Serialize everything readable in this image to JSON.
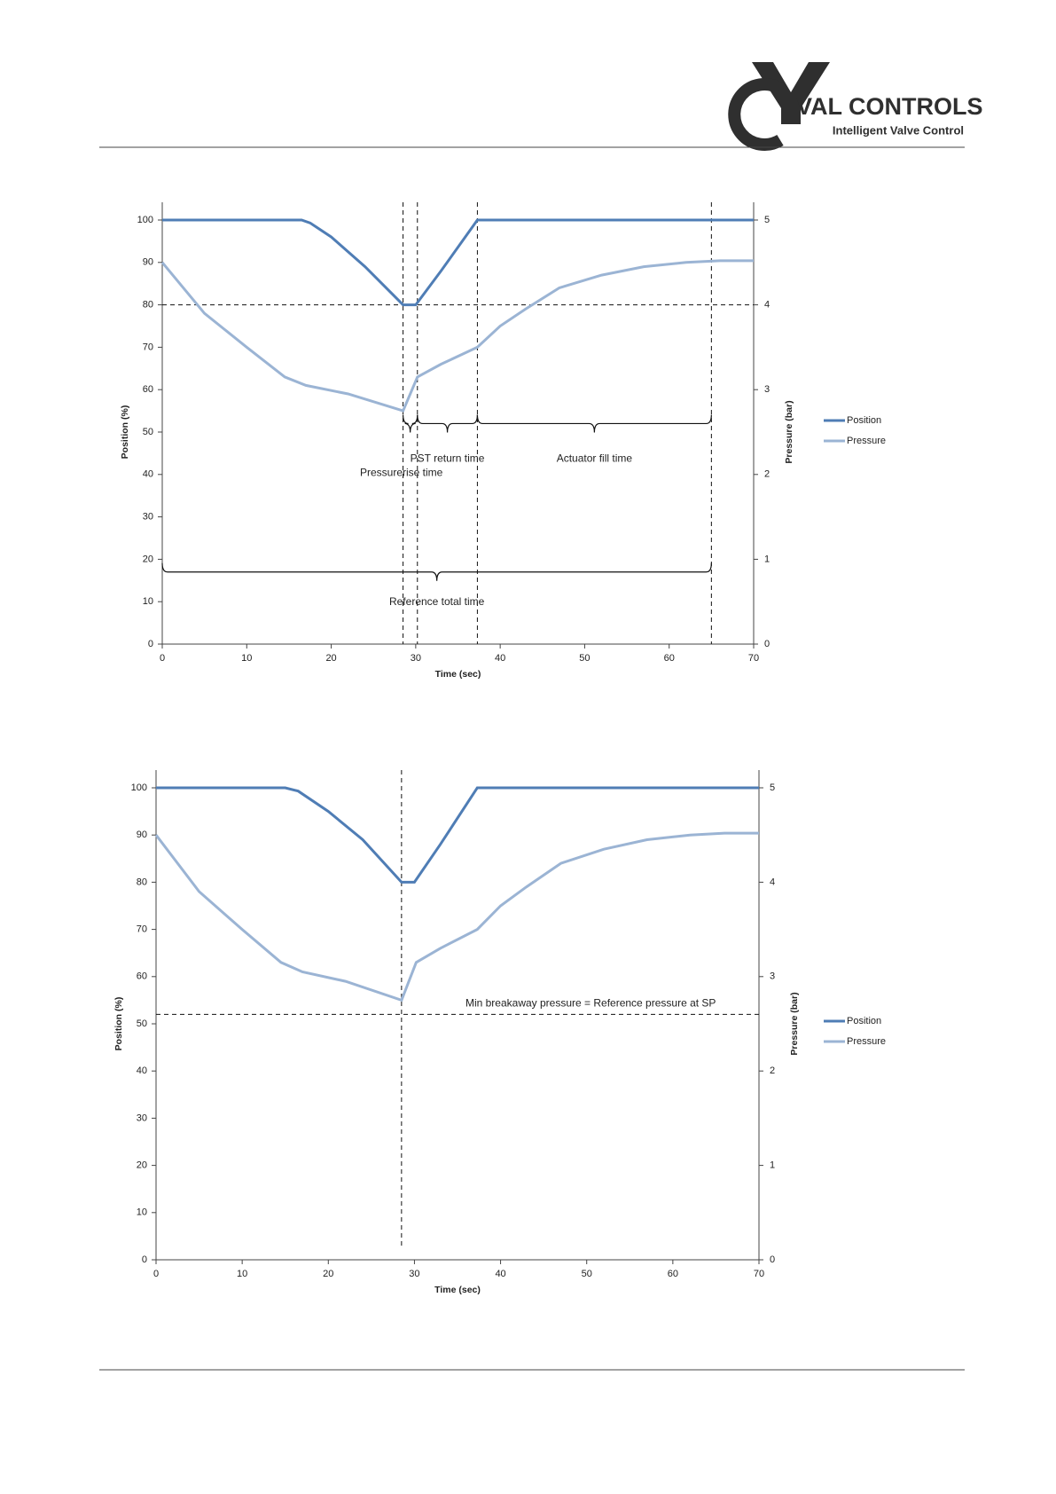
{
  "header": {
    "company": "VAL CONTROLS",
    "tagline": "Intelligent Valve Control"
  },
  "chart_data": [
    {
      "type": "line",
      "x_label": "Time (sec)",
      "y_label": "Position (%)",
      "y2_label": "Pressure (bar)",
      "xlim": [
        0,
        70
      ],
      "xticks": [
        0,
        10,
        20,
        30,
        40,
        50,
        60,
        70
      ],
      "ylim": [
        0,
        100
      ],
      "yticks": [
        0,
        10,
        20,
        30,
        40,
        50,
        60,
        70,
        80,
        90,
        100
      ],
      "y2lim": [
        0,
        5
      ],
      "y2ticks": [
        0,
        1,
        2,
        3,
        4,
        5
      ],
      "legend": "right",
      "series": [
        {
          "name": "Position",
          "color": "#4f7db5",
          "x": [
            0,
            16.5,
            17.5,
            20,
            24,
            28.5,
            30,
            33,
            37.3,
            70
          ],
          "values": [
            100,
            100,
            99.3,
            96,
            89,
            80,
            80,
            88,
            100,
            100
          ]
        },
        {
          "name": "Pressure",
          "color": "#9bb4d4",
          "axis": "y2",
          "x": [
            0,
            5,
            10,
            14.5,
            17,
            22,
            28.5,
            30.2,
            33,
            37.3,
            40,
            43,
            47,
            52,
            57,
            62,
            66,
            70
          ],
          "values": [
            4.5,
            3.9,
            3.5,
            3.15,
            3.05,
            2.95,
            2.75,
            3.15,
            3.3,
            3.5,
            3.75,
            3.95,
            4.2,
            4.35,
            4.45,
            4.5,
            4.52,
            4.52
          ]
        }
      ],
      "vlines": [
        28.5,
        30.2,
        37.3,
        65
      ],
      "hlines": [
        80
      ],
      "braces": [
        {
          "from": 28.5,
          "to": 30.2,
          "label": "Pressurerise time"
        },
        {
          "from": 30.2,
          "to": 37.3,
          "label": "PST return time"
        },
        {
          "from": 37.3,
          "to": 65,
          "label": "Actuator fill time"
        },
        {
          "from": 0,
          "to": 65,
          "label": "Reference total time"
        }
      ]
    },
    {
      "type": "line",
      "x_label": "Time (sec)",
      "y_label": "Position (%)",
      "y2_label": "Pressure (bar)",
      "xlim": [
        0,
        70
      ],
      "xticks": [
        0,
        10,
        20,
        30,
        40,
        50,
        60,
        70
      ],
      "ylim": [
        0,
        100
      ],
      "yticks": [
        0,
        10,
        20,
        30,
        40,
        50,
        60,
        70,
        80,
        90,
        100
      ],
      "y2lim": [
        0,
        5
      ],
      "y2ticks": [
        0,
        1,
        2,
        3,
        4,
        5
      ],
      "legend": "right",
      "series": [
        {
          "name": "Position",
          "color": "#4f7db5",
          "x": [
            0,
            15,
            16.5,
            20,
            24,
            28.5,
            30,
            33,
            37.3,
            70
          ],
          "values": [
            100,
            100,
            99.3,
            95,
            89,
            80,
            80,
            88,
            100,
            100
          ]
        },
        {
          "name": "Pressure",
          "color": "#9bb4d4",
          "axis": "y2",
          "x": [
            0,
            5,
            10,
            14.5,
            17,
            22,
            28.5,
            30.2,
            33,
            37.3,
            40,
            43,
            47,
            52,
            57,
            62,
            66,
            70
          ],
          "values": [
            4.5,
            3.9,
            3.5,
            3.15,
            3.05,
            2.95,
            2.75,
            3.15,
            3.3,
            3.5,
            3.75,
            3.95,
            4.2,
            4.35,
            4.45,
            4.5,
            4.52,
            4.52
          ]
        }
      ],
      "vlines": [
        28.5
      ],
      "hlines": [
        52
      ],
      "annotations": [
        "Min breakaway pressure = Reference pressure at SP"
      ]
    }
  ]
}
